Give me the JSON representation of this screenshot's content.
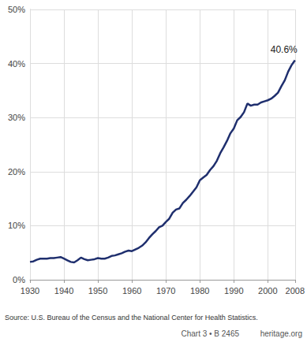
{
  "chart_data": {
    "type": "line",
    "x": [
      1930,
      1931,
      1932,
      1933,
      1934,
      1935,
      1936,
      1937,
      1938,
      1939,
      1940,
      1941,
      1942,
      1943,
      1944,
      1945,
      1946,
      1947,
      1948,
      1949,
      1950,
      1951,
      1952,
      1953,
      1954,
      1955,
      1956,
      1957,
      1958,
      1959,
      1960,
      1961,
      1962,
      1963,
      1964,
      1965,
      1966,
      1967,
      1968,
      1969,
      1970,
      1971,
      1972,
      1973,
      1974,
      1975,
      1976,
      1977,
      1978,
      1979,
      1980,
      1981,
      1982,
      1983,
      1984,
      1985,
      1986,
      1987,
      1988,
      1989,
      1990,
      1991,
      1992,
      1993,
      1994,
      1995,
      1996,
      1997,
      1998,
      1999,
      2000,
      2001,
      2002,
      2003,
      2004,
      2005,
      2006,
      2007,
      2008
    ],
    "values": [
      3.3,
      3.4,
      3.7,
      3.9,
      3.9,
      3.9,
      4.0,
      4.0,
      4.1,
      4.2,
      3.9,
      3.6,
      3.3,
      3.2,
      3.6,
      4.1,
      3.8,
      3.6,
      3.7,
      3.8,
      4.0,
      3.9,
      3.9,
      4.1,
      4.4,
      4.5,
      4.7,
      4.9,
      5.2,
      5.4,
      5.3,
      5.6,
      5.9,
      6.3,
      6.9,
      7.7,
      8.4,
      9.0,
      9.7,
      10.0,
      10.7,
      11.3,
      12.4,
      13.0,
      13.2,
      14.2,
      14.8,
      15.5,
      16.3,
      17.1,
      18.4,
      18.9,
      19.4,
      20.3,
      21.0,
      22.0,
      23.4,
      24.5,
      25.7,
      27.1,
      28.0,
      29.5,
      30.1,
      31.0,
      32.6,
      32.2,
      32.4,
      32.4,
      32.8,
      33.0,
      33.2,
      33.5,
      34.0,
      34.6,
      35.8,
      36.9,
      38.5,
      39.7,
      40.6
    ],
    "color": "#1f2f6e",
    "marker": "none",
    "xlim": [
      1930,
      2008
    ],
    "xticks": [
      1930,
      1940,
      1950,
      1960,
      1970,
      1980,
      1990,
      2000,
      2008
    ],
    "ylim": [
      0,
      50
    ],
    "yticks": [
      {
        "value": 0,
        "label": "0%"
      },
      {
        "value": 10,
        "label": "10%"
      },
      {
        "value": 20,
        "label": "20%"
      },
      {
        "value": 30,
        "label": "30%"
      },
      {
        "value": 40,
        "label": "40%"
      },
      {
        "value": 50,
        "label": "50%"
      }
    ],
    "grid": true,
    "annotations": [
      {
        "text": "40.6%",
        "x": 2008,
        "y": 40.6
      }
    ],
    "source": "Source: U.S. Bureau of the Census and the National Center for Health Statistics.",
    "footer": [
      "Chart 3 • B 2465",
      "heritage.org"
    ]
  }
}
